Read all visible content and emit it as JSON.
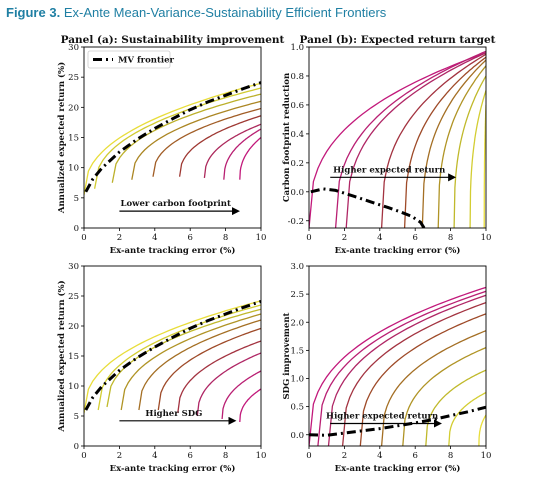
{
  "figure": {
    "label": "Figure 3.",
    "title": "Ex-Ante Mean-Variance-Sustainability Efficient Frontiers",
    "accent_color": "#1f7fa3"
  },
  "chart_data": [
    {
      "panel": "a",
      "type": "line",
      "title": "Panel (a): Sustainability improvement",
      "xlabel": "Ex-ante tracking error (%)",
      "ylabel": "Annualized expected return (%)",
      "xlim": [
        0,
        10
      ],
      "ylim": [
        0,
        30
      ],
      "xticks": [
        0,
        2,
        4,
        6,
        8,
        10
      ],
      "yticks": [
        0,
        5,
        10,
        15,
        20,
        25,
        30
      ],
      "legend": {
        "entries": [
          "MV frontier"
        ],
        "position": "top-left"
      },
      "annotation": {
        "text": "Lower carbon footprint",
        "arrow_from": [
          2,
          2.8
        ],
        "arrow_to": [
          8.7,
          2.8
        ]
      },
      "colormap": [
        "#e8dd3a",
        "#c3c02c",
        "#a77e22",
        "#9b3b2a",
        "#b2236c",
        "#c2197b"
      ],
      "mv_frontier": {
        "name": "MV frontier",
        "x": [
          0.1,
          0.5,
          1,
          2,
          3,
          4,
          5,
          6,
          7,
          8,
          9,
          10
        ],
        "y": [
          6.0,
          8.1,
          9.9,
          12.6,
          14.7,
          16.5,
          18.1,
          19.6,
          20.9,
          22.0,
          23.1,
          24.1
        ]
      },
      "series": [
        {
          "x0": 0.0,
          "start_y": 5.5,
          "end_y": 24.0
        },
        {
          "x0": 0.6,
          "start_y": 6.5,
          "end_y": 23.2
        },
        {
          "x0": 1.6,
          "start_y": 7.5,
          "end_y": 22.2
        },
        {
          "x0": 2.7,
          "start_y": 8.0,
          "end_y": 21.0
        },
        {
          "x0": 3.9,
          "start_y": 8.5,
          "end_y": 19.8
        },
        {
          "x0": 5.4,
          "start_y": 8.5,
          "end_y": 18.6
        },
        {
          "x0": 6.8,
          "start_y": 8.3,
          "end_y": 17.2
        },
        {
          "x0": 7.9,
          "start_y": 8.0,
          "end_y": 16.4
        },
        {
          "x0": 8.8,
          "start_y": 8.0,
          "end_y": 15.0
        }
      ]
    },
    {
      "panel": "b",
      "type": "line",
      "title": "Panel (b): Expected return target",
      "xlabel": "Ex-ante tracking error (%)",
      "ylabel": "Carbon footprint reduction",
      "xlim": [
        0,
        10
      ],
      "ylim": [
        -0.25,
        1.0
      ],
      "xticks": [
        0,
        2,
        4,
        6,
        8,
        10
      ],
      "yticks": [
        -0.2,
        0.0,
        0.2,
        0.4,
        0.6,
        0.8,
        1.0
      ],
      "yticklabels": [
        "-0.2",
        "0.0",
        "0.2",
        "0.4",
        "0.6",
        "0.8",
        "1.0"
      ],
      "annotation": {
        "text": "Higher expected return",
        "arrow_from": [
          1.2,
          0.1
        ],
        "arrow_to": [
          8.2,
          0.1
        ]
      },
      "colormap": [
        "#c2197b",
        "#b2236c",
        "#9b3b2a",
        "#a77e22",
        "#c3c02c",
        "#e8dd3a"
      ],
      "dashed_curve": {
        "x": [
          0.1,
          0.8,
          1.5,
          2.5,
          3.5,
          4.5,
          5.2,
          5.8,
          6.3,
          6.5
        ],
        "y": [
          0.0,
          0.02,
          0.01,
          -0.03,
          -0.07,
          -0.11,
          -0.14,
          -0.17,
          -0.21,
          -0.25
        ]
      },
      "series": [
        {
          "x0": 0.0,
          "end_y": 0.96
        },
        {
          "x0": 1.5,
          "end_y": 0.97
        },
        {
          "x0": 2.1,
          "end_y": 0.96
        },
        {
          "x0": 4.1,
          "end_y": 0.95
        },
        {
          "x0": 5.4,
          "end_y": 0.93
        },
        {
          "x0": 6.4,
          "end_y": 0.91
        },
        {
          "x0": 7.3,
          "end_y": 0.87
        },
        {
          "x0": 8.2,
          "end_y": 0.8
        },
        {
          "x0": 9.1,
          "end_y": 0.7
        },
        {
          "x0": 9.9,
          "end_y": 0.6
        }
      ]
    },
    {
      "panel": "c",
      "type": "line",
      "title": "",
      "xlabel": "Ex-ante tracking error (%)",
      "ylabel": "Annualized expected return (%)",
      "xlim": [
        0,
        10
      ],
      "ylim": [
        0,
        30
      ],
      "xticks": [
        0,
        2,
        4,
        6,
        8,
        10
      ],
      "yticks": [
        0,
        5,
        10,
        15,
        20,
        25,
        30
      ],
      "annotation": {
        "text": "Higher SDG",
        "arrow_from": [
          2,
          4.2
        ],
        "arrow_to": [
          8.5,
          4.2
        ]
      },
      "colormap": [
        "#e8dd3a",
        "#c3c02c",
        "#a77e22",
        "#9b3b2a",
        "#b2236c",
        "#c2197b"
      ],
      "mv_frontier": {
        "x": [
          0.1,
          0.5,
          1,
          2,
          3,
          4,
          5,
          6,
          7,
          8,
          9,
          10
        ],
        "y": [
          6.0,
          8.1,
          9.9,
          12.6,
          14.7,
          16.5,
          18.1,
          19.6,
          20.9,
          22.0,
          23.1,
          24.1
        ]
      },
      "series": [
        {
          "x0": 0.0,
          "start_y": 5.5,
          "end_y": 24.2
        },
        {
          "x0": 0.8,
          "start_y": 6.0,
          "end_y": 23.5
        },
        {
          "x0": 1.3,
          "start_y": 6.5,
          "end_y": 22.8
        },
        {
          "x0": 2.1,
          "start_y": 6.0,
          "end_y": 22.0
        },
        {
          "x0": 3.1,
          "start_y": 6.0,
          "end_y": 21.0
        },
        {
          "x0": 4.2,
          "start_y": 6.0,
          "end_y": 19.6
        },
        {
          "x0": 5.3,
          "start_y": 5.5,
          "end_y": 17.5
        },
        {
          "x0": 6.4,
          "start_y": 5.0,
          "end_y": 15.5
        },
        {
          "x0": 7.8,
          "start_y": 4.5,
          "end_y": 12.5
        },
        {
          "x0": 8.8,
          "start_y": 4.0,
          "end_y": 9.5
        }
      ]
    },
    {
      "panel": "d",
      "type": "line",
      "title": "",
      "xlabel": "Ex-ante tracking error (%)",
      "ylabel": "SDG improvement",
      "xlim": [
        0,
        10
      ],
      "ylim": [
        -0.2,
        3.0
      ],
      "xticks": [
        0,
        2,
        4,
        6,
        8,
        10
      ],
      "yticks": [
        0.0,
        0.5,
        1.0,
        1.5,
        2.0,
        2.5,
        3.0
      ],
      "yticklabels": [
        "0.0",
        "0.5",
        "1.0",
        "1.5",
        "2.0",
        "2.5",
        "3.0"
      ],
      "annotation": {
        "text": "Higher expected return",
        "arrow_from": [
          1.2,
          0.2
        ],
        "arrow_to": [
          7.4,
          0.2
        ]
      },
      "colormap": [
        "#c2197b",
        "#b2236c",
        "#9b3b2a",
        "#a77e22",
        "#c3c02c",
        "#e8dd3a"
      ],
      "dashed_curve": {
        "x": [
          0.0,
          1.0,
          2.0,
          3.0,
          4.0,
          5.0,
          6.0,
          7.0,
          8.0,
          9.0,
          10.0
        ],
        "y": [
          0.0,
          -0.01,
          0.03,
          0.07,
          0.11,
          0.16,
          0.21,
          0.27,
          0.34,
          0.41,
          0.49
        ]
      },
      "series": [
        {
          "x0": 0.0,
          "end_y": 2.62
        },
        {
          "x0": 0.5,
          "end_y": 2.55
        },
        {
          "x0": 1.1,
          "end_y": 2.48
        },
        {
          "x0": 1.9,
          "end_y": 2.35
        },
        {
          "x0": 2.9,
          "end_y": 2.15
        },
        {
          "x0": 4.1,
          "end_y": 1.85
        },
        {
          "x0": 5.3,
          "end_y": 1.55
        },
        {
          "x0": 6.6,
          "end_y": 1.15
        },
        {
          "x0": 7.9,
          "end_y": 0.75
        },
        {
          "x0": 9.6,
          "end_y": 0.35
        }
      ]
    }
  ]
}
